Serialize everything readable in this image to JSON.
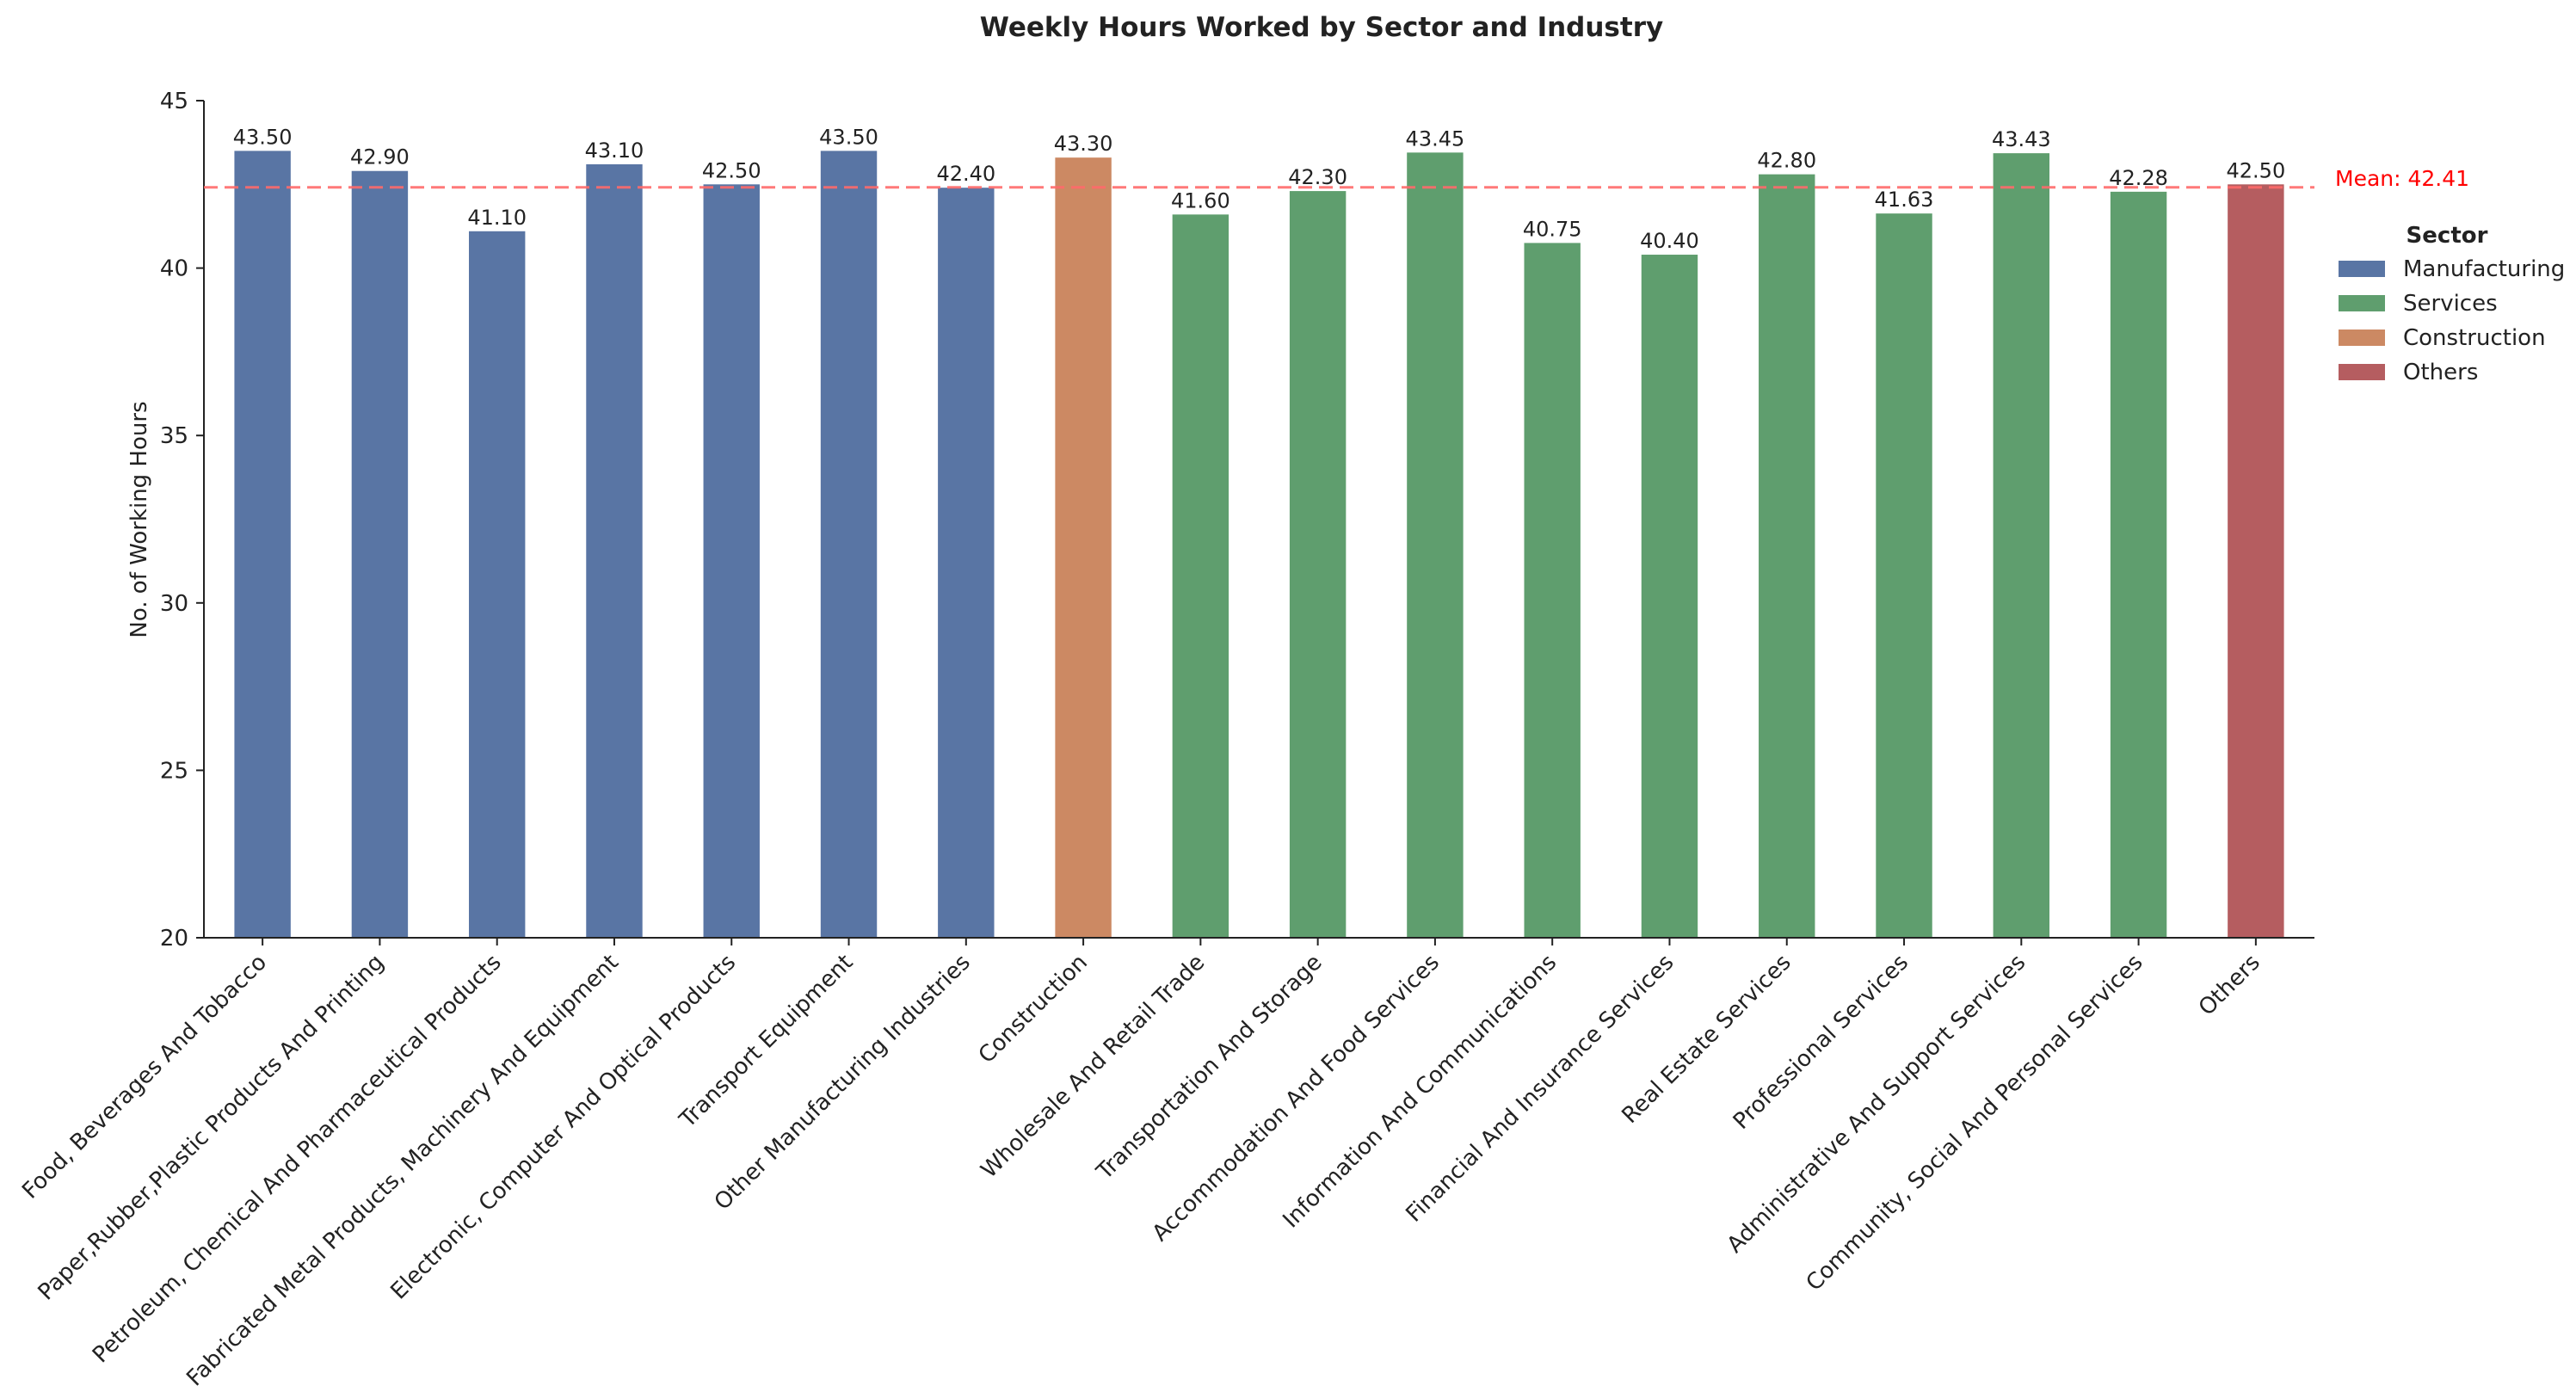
{
  "chart_data": {
    "type": "bar",
    "title": "Weekly Hours Worked by Sector and Industry",
    "xlabel": "",
    "ylabel": "No. of Working Hours",
    "ylim": [
      20,
      45
    ],
    "yticks": [
      20,
      25,
      30,
      35,
      40,
      45
    ],
    "grid": false,
    "legend": {
      "title": "Sector",
      "placement": "right",
      "entries": [
        "Manufacturing",
        "Services",
        "Construction",
        "Others"
      ]
    },
    "colors": {
      "Manufacturing": "#5975a4",
      "Services": "#5f9e6e",
      "Construction": "#cc8963",
      "Others": "#b55d60",
      "mean_line": "#ff6b6b",
      "mean_label": "#ff0000"
    },
    "mean": {
      "value": 42.41,
      "label": "Mean: 42.41"
    },
    "categories": [
      "Food, Beverages And Tobacco",
      "Paper,Rubber,Plastic Products And Printing",
      "Petroleum, Chemical And Pharmaceutical Products",
      "Fabricated Metal Products, Machinery And Equipment",
      "Electronic, Computer And Optical Products",
      "Transport Equipment",
      "Other Manufacturing Industries",
      "Construction",
      "Wholesale And Retail Trade",
      "Transportation And Storage",
      "Accommodation And Food Services",
      "Information And Communications",
      "Financial And Insurance Services",
      "Real Estate Services",
      "Professional Services",
      "Administrative And Support Services",
      "Community, Social And Personal Services",
      "Others"
    ],
    "values": [
      43.5,
      42.9,
      41.1,
      43.1,
      42.5,
      43.5,
      42.4,
      43.3,
      41.6,
      42.3,
      43.45,
      40.75,
      40.4,
      42.8,
      41.63,
      43.43,
      42.28,
      42.5
    ],
    "value_labels": [
      "43.50",
      "42.90",
      "41.10",
      "43.10",
      "42.50",
      "43.50",
      "42.40",
      "43.30",
      "41.60",
      "42.30",
      "43.45",
      "40.75",
      "40.40",
      "42.80",
      "41.63",
      "43.43",
      "42.28",
      "42.50"
    ],
    "sectors": [
      "Manufacturing",
      "Manufacturing",
      "Manufacturing",
      "Manufacturing",
      "Manufacturing",
      "Manufacturing",
      "Manufacturing",
      "Construction",
      "Services",
      "Services",
      "Services",
      "Services",
      "Services",
      "Services",
      "Services",
      "Services",
      "Services",
      "Others"
    ]
  }
}
